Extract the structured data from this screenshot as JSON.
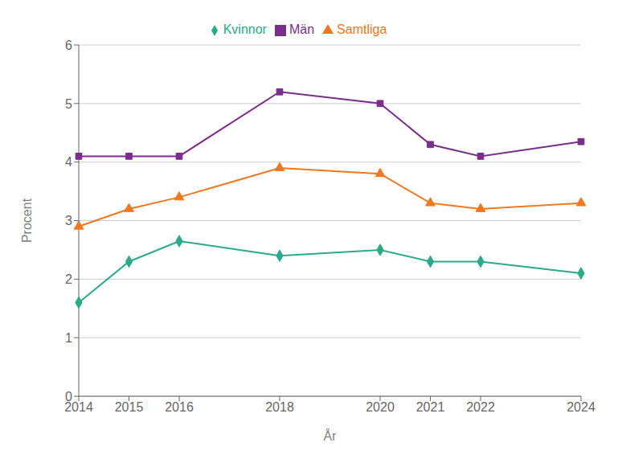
{
  "chart_data": {
    "type": "line",
    "x": [
      2014,
      2015,
      2016,
      2018,
      2020,
      2021,
      2022,
      2024
    ],
    "series": [
      {
        "name": "Kvinnor",
        "color": "#2aaa8a",
        "marker": "diamond",
        "values": [
          1.6,
          2.3,
          2.65,
          2.4,
          2.5,
          2.3,
          2.3,
          2.1
        ]
      },
      {
        "name": "Män",
        "color": "#7b2d8b",
        "marker": "square",
        "values": [
          4.1,
          4.1,
          4.1,
          5.2,
          5.0,
          4.3,
          4.1,
          4.35
        ]
      },
      {
        "name": "Samtliga",
        "color": "#f07820",
        "marker": "triangle",
        "values": [
          2.9,
          3.2,
          3.4,
          3.9,
          3.8,
          3.3,
          3.2,
          3.3
        ]
      }
    ],
    "xlabel": "År",
    "ylabel": "Procent",
    "xlim": [
      2014,
      2024
    ],
    "xticks": [
      2014,
      2015,
      2016,
      2018,
      2020,
      2021,
      2022,
      2024
    ],
    "ylim": [
      0,
      6
    ],
    "yticks": [
      0,
      1,
      2,
      3,
      4,
      5,
      6
    ],
    "grid": true,
    "legend": "top"
  }
}
